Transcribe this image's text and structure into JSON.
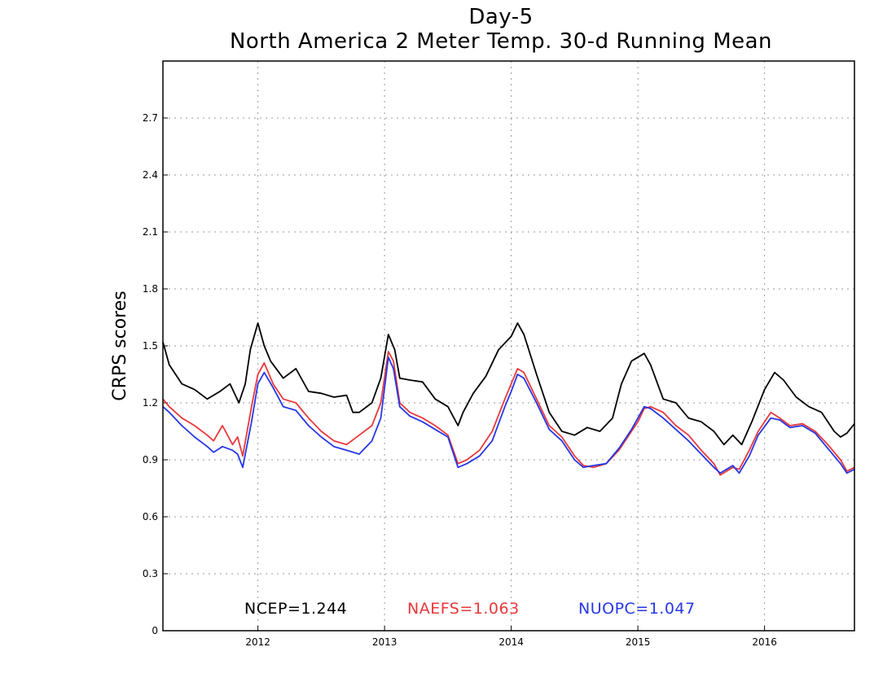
{
  "chart_data": {
    "type": "line",
    "title": "Day-5",
    "subtitle": "North America 2 Meter Temp. 30-d Running Mean",
    "xlabel": "",
    "ylabel": "CRPS scores",
    "xlim": [
      2011.25,
      2016.71
    ],
    "ylim": [
      0,
      3.0
    ],
    "x_ticks": [
      2012,
      2013,
      2014,
      2015,
      2016
    ],
    "x_tick_labels": [
      "2012",
      "2013",
      "2014",
      "2015",
      "2016"
    ],
    "y_ticks": [
      0,
      0.3,
      0.6,
      0.9,
      1.2,
      1.5,
      1.8,
      2.1,
      2.4,
      2.7
    ],
    "y_tick_labels": [
      "0",
      "0.3",
      "0.6",
      "0.9",
      "1.2",
      "1.5",
      "1.8",
      "2.1",
      "2.4",
      "2.7"
    ],
    "grid": true,
    "legend": "bottom, inline text",
    "series": [
      {
        "name": "NCEP",
        "summary_label": "NCEP=1.244",
        "color": "#000000",
        "x": [
          2011.25,
          2011.3,
          2011.4,
          2011.5,
          2011.6,
          2011.7,
          2011.78,
          2011.85,
          2011.9,
          2011.94,
          2012.0,
          2012.05,
          2012.1,
          2012.2,
          2012.3,
          2012.4,
          2012.5,
          2012.6,
          2012.7,
          2012.75,
          2012.8,
          2012.9,
          2012.97,
          2013.03,
          2013.08,
          2013.12,
          2013.2,
          2013.3,
          2013.4,
          2013.5,
          2013.58,
          2013.62,
          2013.7,
          2013.8,
          2013.9,
          2014.0,
          2014.05,
          2014.1,
          2014.2,
          2014.3,
          2014.4,
          2014.5,
          2014.6,
          2014.7,
          2014.8,
          2014.87,
          2014.95,
          2015.05,
          2015.1,
          2015.2,
          2015.3,
          2015.4,
          2015.5,
          2015.6,
          2015.68,
          2015.75,
          2015.82,
          2015.9,
          2016.0,
          2016.08,
          2016.15,
          2016.25,
          2016.35,
          2016.45,
          2016.55,
          2016.6,
          2016.65,
          2016.71
        ],
        "y": [
          1.52,
          1.4,
          1.3,
          1.27,
          1.22,
          1.26,
          1.3,
          1.2,
          1.3,
          1.48,
          1.62,
          1.5,
          1.42,
          1.33,
          1.38,
          1.26,
          1.25,
          1.23,
          1.24,
          1.15,
          1.15,
          1.2,
          1.33,
          1.56,
          1.48,
          1.33,
          1.32,
          1.31,
          1.22,
          1.18,
          1.08,
          1.15,
          1.25,
          1.34,
          1.48,
          1.55,
          1.62,
          1.56,
          1.35,
          1.15,
          1.05,
          1.03,
          1.07,
          1.05,
          1.12,
          1.3,
          1.42,
          1.46,
          1.4,
          1.22,
          1.2,
          1.12,
          1.1,
          1.05,
          0.98,
          1.03,
          0.98,
          1.1,
          1.27,
          1.36,
          1.32,
          1.23,
          1.18,
          1.15,
          1.05,
          1.02,
          1.04,
          1.09
        ]
      },
      {
        "name": "NAEFS",
        "summary_label": "NAEFS=1.063",
        "color": "#e8383b",
        "x": [
          2011.25,
          2011.3,
          2011.4,
          2011.5,
          2011.6,
          2011.65,
          2011.72,
          2011.8,
          2011.84,
          2011.88,
          2011.95,
          2012.0,
          2012.05,
          2012.12,
          2012.2,
          2012.3,
          2012.4,
          2012.5,
          2012.6,
          2012.7,
          2012.8,
          2012.9,
          2012.97,
          2013.03,
          2013.07,
          2013.12,
          2013.2,
          2013.3,
          2013.4,
          2013.5,
          2013.58,
          2013.65,
          2013.75,
          2013.85,
          2013.95,
          2014.0,
          2014.05,
          2014.1,
          2014.2,
          2014.3,
          2014.4,
          2014.5,
          2014.57,
          2014.65,
          2014.75,
          2014.85,
          2014.95,
          2015.0,
          2015.05,
          2015.1,
          2015.2,
          2015.3,
          2015.4,
          2015.5,
          2015.6,
          2015.65,
          2015.7,
          2015.75,
          2015.8,
          2015.88,
          2015.95,
          2016.05,
          2016.12,
          2016.2,
          2016.3,
          2016.4,
          2016.5,
          2016.6,
          2016.65,
          2016.71
        ],
        "y": [
          1.22,
          1.18,
          1.12,
          1.08,
          1.03,
          1.0,
          1.08,
          0.98,
          1.02,
          0.92,
          1.18,
          1.35,
          1.41,
          1.3,
          1.22,
          1.2,
          1.12,
          1.05,
          1.0,
          0.98,
          1.03,
          1.08,
          1.2,
          1.47,
          1.42,
          1.2,
          1.15,
          1.12,
          1.08,
          1.03,
          0.88,
          0.9,
          0.95,
          1.05,
          1.22,
          1.3,
          1.38,
          1.36,
          1.22,
          1.08,
          1.02,
          0.92,
          0.87,
          0.86,
          0.88,
          0.95,
          1.05,
          1.1,
          1.17,
          1.18,
          1.15,
          1.08,
          1.03,
          0.95,
          0.88,
          0.82,
          0.84,
          0.86,
          0.85,
          0.95,
          1.05,
          1.15,
          1.12,
          1.08,
          1.09,
          1.05,
          0.98,
          0.9,
          0.84,
          0.86
        ]
      },
      {
        "name": "NUOPC",
        "summary_label": "NUOPC=1.047",
        "color": "#2637e6",
        "x": [
          2011.25,
          2011.3,
          2011.4,
          2011.5,
          2011.6,
          2011.65,
          2011.72,
          2011.8,
          2011.84,
          2011.88,
          2011.95,
          2012.0,
          2012.05,
          2012.12,
          2012.2,
          2012.3,
          2012.4,
          2012.5,
          2012.6,
          2012.7,
          2012.8,
          2012.9,
          2012.97,
          2013.03,
          2013.07,
          2013.12,
          2013.2,
          2013.3,
          2013.4,
          2013.5,
          2013.58,
          2013.65,
          2013.75,
          2013.85,
          2013.95,
          2014.0,
          2014.05,
          2014.1,
          2014.2,
          2014.3,
          2014.4,
          2014.5,
          2014.57,
          2014.65,
          2014.75,
          2014.85,
          2014.95,
          2015.0,
          2015.05,
          2015.1,
          2015.2,
          2015.3,
          2015.4,
          2015.5,
          2015.6,
          2015.65,
          2015.7,
          2015.75,
          2015.8,
          2015.88,
          2015.95,
          2016.05,
          2016.12,
          2016.2,
          2016.3,
          2016.4,
          2016.5,
          2016.6,
          2016.65,
          2016.71
        ],
        "y": [
          1.18,
          1.15,
          1.08,
          1.02,
          0.97,
          0.94,
          0.97,
          0.95,
          0.93,
          0.86,
          1.1,
          1.3,
          1.36,
          1.28,
          1.18,
          1.16,
          1.08,
          1.02,
          0.97,
          0.95,
          0.93,
          1.0,
          1.12,
          1.44,
          1.38,
          1.18,
          1.13,
          1.1,
          1.06,
          1.02,
          0.86,
          0.88,
          0.92,
          1.0,
          1.18,
          1.26,
          1.35,
          1.33,
          1.2,
          1.06,
          1.0,
          0.9,
          0.86,
          0.87,
          0.88,
          0.96,
          1.06,
          1.12,
          1.18,
          1.17,
          1.12,
          1.06,
          1.0,
          0.93,
          0.86,
          0.83,
          0.85,
          0.87,
          0.83,
          0.92,
          1.03,
          1.12,
          1.11,
          1.07,
          1.08,
          1.04,
          0.96,
          0.88,
          0.83,
          0.85
        ]
      }
    ]
  }
}
